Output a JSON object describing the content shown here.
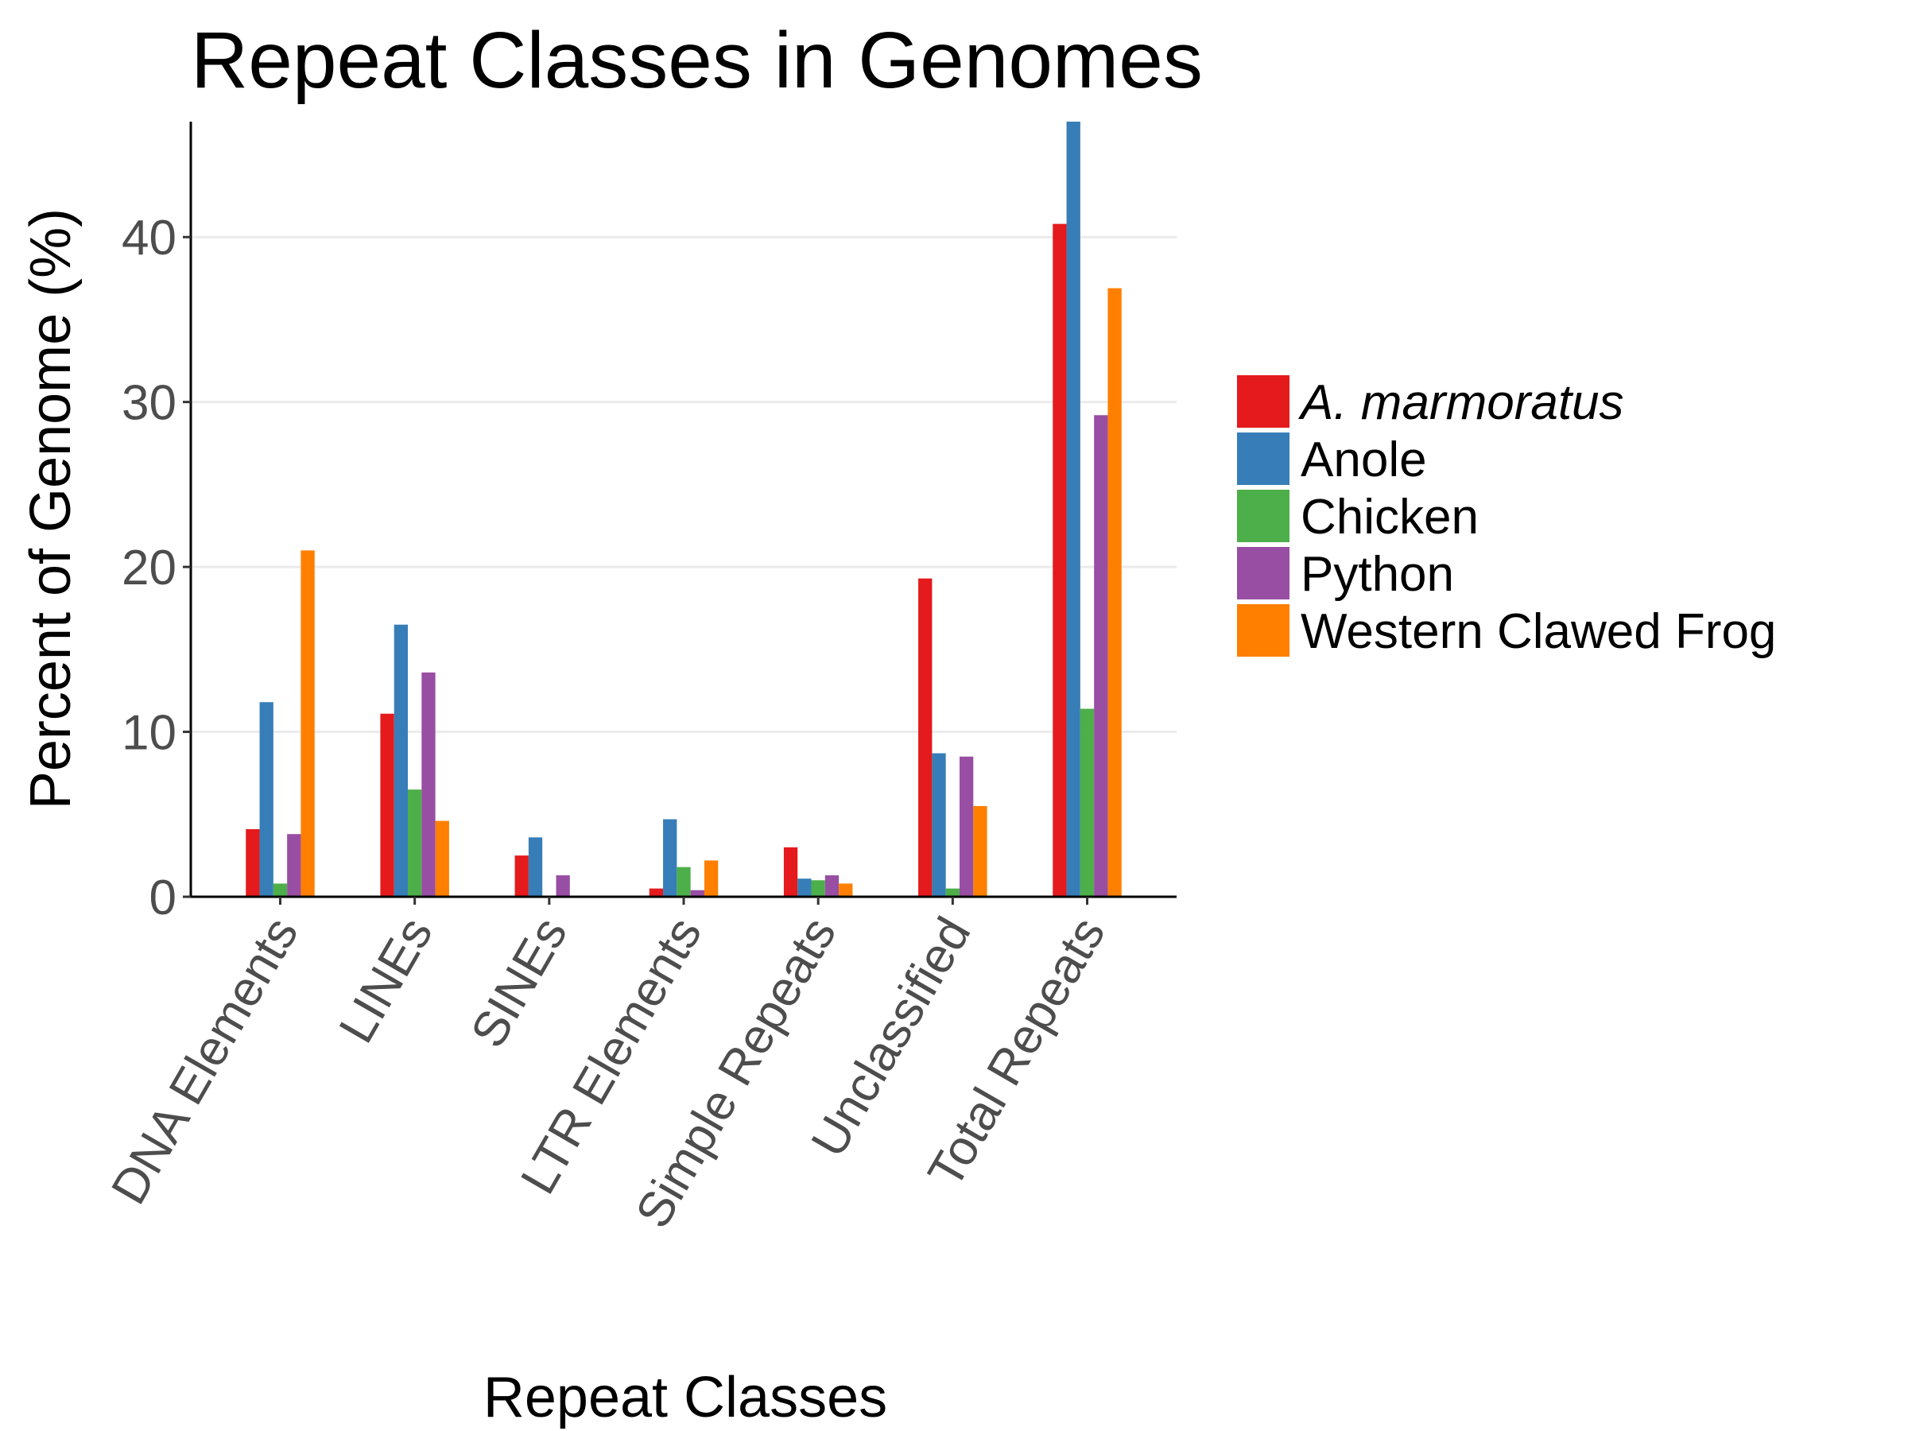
{
  "chart_data": {
    "type": "bar",
    "title": "Repeat Classes in Genomes",
    "xlabel": "Repeat Classes",
    "ylabel": "Percent of Genome (%)",
    "categories": [
      "DNA Elements",
      "LINEs",
      "SINEs",
      "LTR Elements",
      "Simple Repeats",
      "Unclassified",
      "Total Repeats"
    ],
    "ylim": [
      0,
      47
    ],
    "yticks": [
      0,
      10,
      20,
      30,
      40
    ],
    "grid": true,
    "legend_position": "right",
    "series": [
      {
        "name": "A. marmoratus",
        "italic": true,
        "color": "#e41a1c",
        "values": [
          4.1,
          11.1,
          2.5,
          0.5,
          3.0,
          19.3,
          40.8
        ]
      },
      {
        "name": "Anole",
        "italic": false,
        "color": "#377eb8",
        "values": [
          11.8,
          16.5,
          3.6,
          4.7,
          1.1,
          8.7,
          47.0
        ]
      },
      {
        "name": "Chicken",
        "italic": false,
        "color": "#4daf4a",
        "values": [
          0.8,
          6.5,
          0.0,
          1.8,
          1.0,
          0.5,
          11.4
        ]
      },
      {
        "name": "Python",
        "italic": false,
        "color": "#984ea3",
        "values": [
          3.8,
          13.6,
          1.3,
          0.4,
          1.3,
          8.5,
          29.2
        ]
      },
      {
        "name": "Western Clawed Frog",
        "italic": false,
        "color": "#ff7f00",
        "values": [
          21.0,
          4.6,
          0.0,
          2.2,
          0.8,
          5.5,
          36.9
        ]
      }
    ]
  }
}
